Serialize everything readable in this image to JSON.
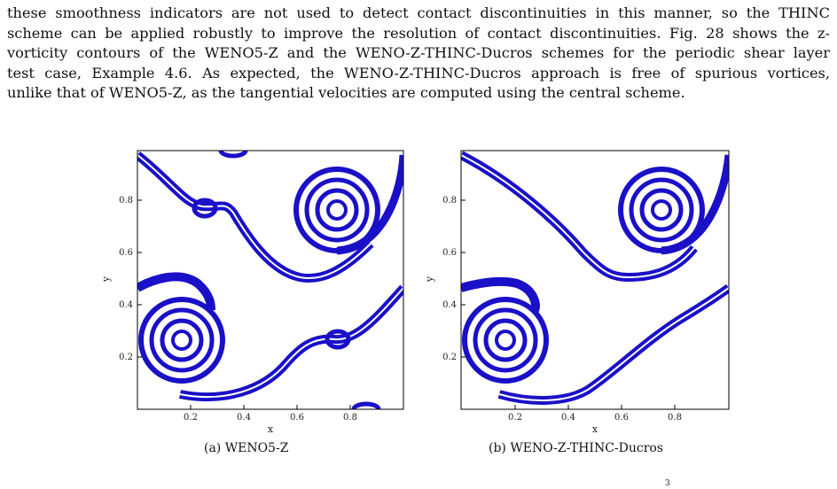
{
  "paragraph": {
    "lines": [
      "these smoothness indicators are not used to detect contact discontinuities in this manner, so the THINC",
      "scheme can be applied robustly to improve the resolution of contact discontinuities. Fig. 28 shows the z-",
      "vorticity contours of the WENO5-Z and the WENO-Z-THINC-Ducros schemes for the periodic shear layer",
      "test case, Example 4.6. As expected, the WENO-Z-THINC-Ducros approach is free of spurious vortices,",
      "unlike that of WENO5-Z, as the tangential velocities are computed using the central scheme."
    ]
  },
  "figures": [
    {
      "caption": "(a) WENO5-Z",
      "xlabel": "x",
      "ylabel": "y",
      "xticks": [
        "0.2",
        "0.4",
        "0.6",
        "0.8"
      ],
      "yticks": [
        "0.2",
        "0.4",
        "0.6",
        "0.8"
      ]
    },
    {
      "caption": "(b) WENO-Z-THINC-Ducros",
      "xlabel": "x",
      "ylabel": "y",
      "xticks": [
        "0.2",
        "0.4",
        "0.6",
        "0.8"
      ],
      "yticks": [
        "0.2",
        "0.4",
        "0.6",
        "0.8"
      ]
    }
  ],
  "footer_mark": "3",
  "colors": {
    "contour": "#1a10c8",
    "text": "#111111"
  }
}
